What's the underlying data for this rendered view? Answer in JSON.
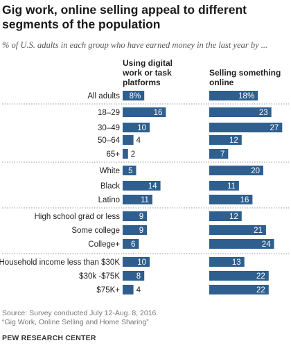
{
  "title": "Gig work, online selling appeal to different segments of the population",
  "subtitle": "% of U.S. adults in each group who have earned money in the last year by ...",
  "columns": {
    "col1": "Using digital work or task platforms",
    "col2": "Selling something online"
  },
  "source": "Source: Survey conducted July 12-Aug. 8, 2016.",
  "report": "“Gig Work, Online Selling and Home Sharing”",
  "brand": "PEW RESEARCH CENTER",
  "colors": {
    "bar": "#2e5f8f",
    "bar_text": "#ffffff",
    "divider": "#999999"
  },
  "chart_data": {
    "type": "bar",
    "categories": [
      "All adults",
      "18–29",
      "30–49",
      "50–64",
      "65+",
      "White",
      "Black",
      "Latino",
      "High school grad or less",
      "Some college",
      "College+",
      "Household income less than $30K",
      "$30k -$75K",
      "$75K+"
    ],
    "value_labels": {
      "col1": [
        "8%",
        "16",
        "10",
        "4",
        "2",
        "5",
        "14",
        "11",
        "9",
        "9",
        "6",
        "10",
        "8",
        "4"
      ],
      "col2": [
        "18%",
        "23",
        "27",
        "12",
        "7",
        "20",
        "11",
        "16",
        "12",
        "21",
        "24",
        "13",
        "22",
        "22"
      ]
    },
    "series": [
      {
        "name": "Using digital work or task platforms",
        "values": [
          8,
          16,
          10,
          4,
          2,
          5,
          14,
          11,
          9,
          9,
          6,
          10,
          8,
          4
        ]
      },
      {
        "name": "Selling something online",
        "values": [
          18,
          23,
          27,
          12,
          7,
          20,
          11,
          16,
          12,
          21,
          24,
          13,
          22,
          22
        ]
      }
    ],
    "groups": [
      [
        0
      ],
      [
        1,
        2,
        3,
        4
      ],
      [
        5,
        6,
        7
      ],
      [
        8,
        9,
        10
      ],
      [
        11,
        12,
        13
      ]
    ]
  }
}
